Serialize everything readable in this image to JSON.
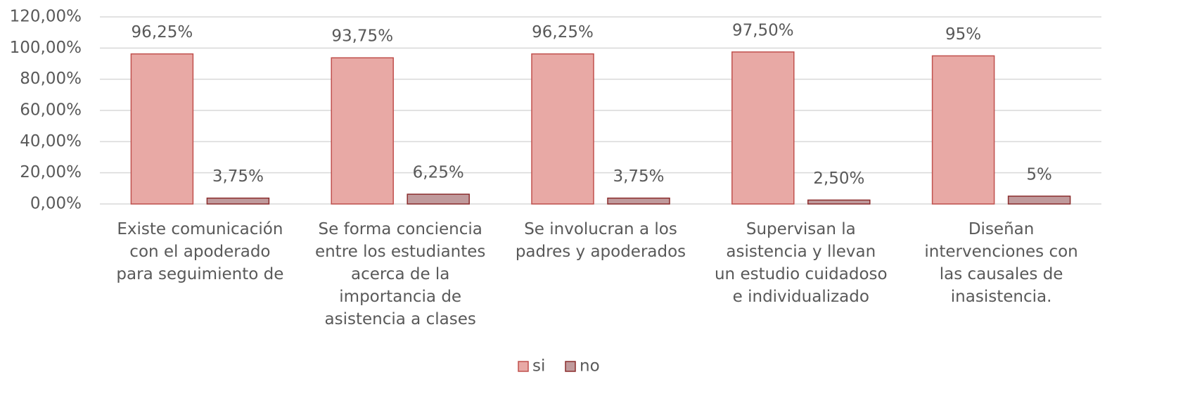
{
  "chart_data": {
    "type": "bar",
    "categories": [
      "Existe comunicación\ncon el apoderado\npara seguimiento de",
      "Se forma conciencia\nentre los estudiantes\nacerca de la\nimportancia de\nasistencia a clases",
      "Se involucran a los\npadres y apoderados",
      "Supervisan la\nasistencia y llevan\nun estudio cuidadoso\ne individualizado",
      "Diseñan\nintervenciones con\nlas causales de\ninasistencia."
    ],
    "series": [
      {
        "name": "si",
        "color": "#e8a9a5",
        "stroke": "#c0504d",
        "values": [
          96.25,
          93.75,
          96.25,
          97.5,
          95
        ],
        "value_labels": [
          "96,25%",
          "93,75%",
          "96,25%",
          "97,50%",
          "95%"
        ]
      },
      {
        "name": "no",
        "color": "#c09a9c",
        "stroke": "#8b2d2d",
        "values": [
          3.75,
          6.25,
          3.75,
          2.5,
          5
        ],
        "value_labels": [
          "3,75%",
          "6,25%",
          "3,75%",
          "2,50%",
          "5%"
        ]
      }
    ],
    "ylim": [
      0,
      120
    ],
    "yticks": [
      {
        "value": 0,
        "label": "0,00%"
      },
      {
        "value": 20,
        "label": "20,00%"
      },
      {
        "value": 40,
        "label": "40,00%"
      },
      {
        "value": 60,
        "label": "60,00%"
      },
      {
        "value": 80,
        "label": "80,00%"
      },
      {
        "value": 100,
        "label": "100,00%"
      },
      {
        "value": 120,
        "label": "120,00%"
      }
    ],
    "grid": true,
    "legend": "bottom"
  }
}
